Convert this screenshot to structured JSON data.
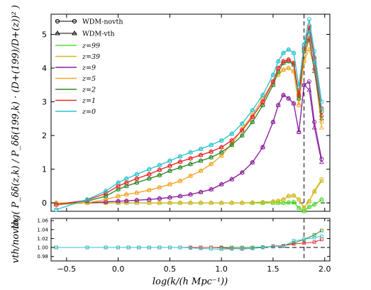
{
  "chart_data": [
    {
      "type": "line",
      "panel": "main",
      "xlabel": "log(k/(h Mpc⁻¹))",
      "ylabel": "log( P_δδ(z,k) / P_δδ(199,k) · (D+(199)/D+(z))² )",
      "xlim": [
        -0.65,
        2.05
      ],
      "ylim": [
        -0.25,
        5.6
      ],
      "xticks": [
        "−0.5",
        "0.0",
        "0.5",
        "1.0",
        "1.5",
        "2.0"
      ],
      "yticks": [
        "0",
        "1",
        "2",
        "3",
        "4",
        "5"
      ],
      "vline_x": 1.8,
      "hline_y": 0,
      "legend": {
        "placement": "top-left",
        "markers": [
          {
            "label": "WDM-novth",
            "marker": "circle"
          },
          {
            "label": "WDM-vth",
            "marker": "triangle"
          }
        ],
        "series_labels": [
          "z=99",
          "z=39",
          "z=9",
          "z=5",
          "z=2",
          "z=1",
          "z=0"
        ]
      },
      "x": [
        -0.6,
        -0.3,
        -0.12,
        0.0,
        0.08,
        0.18,
        0.3,
        0.4,
        0.5,
        0.6,
        0.7,
        0.8,
        0.9,
        1.0,
        1.1,
        1.2,
        1.3,
        1.4,
        1.5,
        1.55,
        1.6,
        1.65,
        1.7,
        1.75,
        1.8,
        1.85,
        1.9,
        1.97
      ],
      "series": [
        {
          "name": "z=99",
          "color": "#4cdf2e",
          "values": [
            0.0,
            0.0,
            0.0,
            0.0,
            0.0,
            0.0,
            0.0,
            0.0,
            0.0,
            0.0,
            0.0,
            0.0,
            0.0,
            0.0,
            0.0,
            0.0,
            0.0,
            0.0,
            0.0,
            0.0,
            0.0,
            0.01,
            0.02,
            -0.15,
            -0.25,
            -0.12,
            -0.05,
            0.1
          ]
        },
        {
          "name": "z=39",
          "color": "#d4b71f",
          "values": [
            0.0,
            0.0,
            0.0,
            0.0,
            0.0,
            0.0,
            0.0,
            0.0,
            0.0,
            0.0,
            0.0,
            0.0,
            0.0,
            0.0,
            0.0,
            0.0,
            0.01,
            0.02,
            0.04,
            0.06,
            0.1,
            0.2,
            0.22,
            0.1,
            -0.15,
            0.05,
            0.35,
            0.7
          ]
        },
        {
          "name": "z=9",
          "color": "#8b1e9e",
          "values": [
            -0.05,
            0.0,
            0.03,
            0.05,
            0.06,
            0.08,
            0.1,
            0.13,
            0.16,
            0.2,
            0.25,
            0.32,
            0.4,
            0.55,
            0.7,
            0.9,
            1.2,
            1.65,
            2.4,
            2.9,
            3.2,
            3.1,
            2.95,
            2.1,
            3.5,
            3.6,
            2.4,
            1.3
          ]
        },
        {
          "name": "z=5",
          "color": "#f5a623",
          "values": [
            -0.05,
            0.0,
            0.1,
            0.2,
            0.25,
            0.3,
            0.38,
            0.46,
            0.55,
            0.65,
            0.8,
            0.95,
            1.15,
            1.4,
            1.75,
            2.2,
            2.6,
            3.1,
            3.6,
            3.8,
            3.95,
            4.0,
            3.9,
            2.9,
            4.2,
            4.9,
            4.3,
            2.4
          ]
        },
        {
          "name": "z=2",
          "color": "#2f8a2a",
          "values": [
            -0.05,
            0.05,
            0.2,
            0.4,
            0.5,
            0.6,
            0.72,
            0.82,
            0.95,
            1.05,
            1.15,
            1.25,
            1.35,
            1.5,
            1.72,
            2.0,
            2.4,
            2.9,
            3.5,
            3.9,
            4.15,
            4.2,
            4.1,
            3.1,
            4.5,
            5.2,
            4.2,
            2.7
          ]
        },
        {
          "name": "z=1",
          "color": "#e8282b",
          "values": [
            -0.05,
            0.08,
            0.28,
            0.5,
            0.6,
            0.72,
            0.85,
            0.98,
            1.1,
            1.22,
            1.32,
            1.42,
            1.52,
            1.65,
            1.85,
            2.15,
            2.55,
            3.0,
            3.6,
            4.0,
            4.2,
            4.25,
            4.15,
            3.2,
            4.6,
            5.25,
            4.3,
            2.8
          ]
        },
        {
          "name": "z=0",
          "color": "#2ec4cc",
          "values": [
            -0.2,
            0.1,
            0.35,
            0.6,
            0.72,
            0.85,
            1.0,
            1.12,
            1.25,
            1.38,
            1.5,
            1.6,
            1.72,
            1.85,
            2.05,
            2.35,
            2.75,
            3.2,
            3.8,
            4.2,
            4.45,
            4.55,
            4.45,
            3.45,
            4.7,
            5.45,
            4.5,
            3.0
          ]
        }
      ]
    },
    {
      "type": "line",
      "panel": "ratio",
      "xlabel": "log(k/(h Mpc⁻¹))",
      "ylabel": "vth/novth",
      "xlim": [
        -0.65,
        2.05
      ],
      "ylim": [
        0.97,
        1.065
      ],
      "yticks": [
        "0.98",
        "1.00",
        "1.02",
        "1.04",
        "1.06"
      ],
      "hline_y": 1.0,
      "vline_x": 1.8,
      "x": [
        -0.6,
        -0.3,
        -0.12,
        0.0,
        0.1,
        0.2,
        0.3,
        0.4,
        0.5,
        0.6,
        0.7,
        0.8,
        0.9,
        1.0,
        1.1,
        1.2,
        1.3,
        1.4,
        1.5,
        1.6,
        1.7,
        1.8,
        1.9,
        1.97
      ],
      "series": [
        {
          "name": "z=2",
          "color": "#2f8a2a",
          "values": [
            1.0,
            1.0,
            1.0,
            1.0,
            1.0,
            1.0,
            1.0,
            1.0,
            1.0,
            1.0,
            1.0,
            1.0,
            1.0,
            1.0,
            1.0,
            1.0,
            1.0,
            1.001,
            1.002,
            1.004,
            1.01,
            1.018,
            1.028,
            1.038
          ]
        },
        {
          "name": "z=1",
          "color": "#e8282b",
          "values": [
            1.0,
            1.0,
            1.0,
            1.0,
            1.0,
            1.0,
            1.0,
            1.0,
            1.0,
            1.0,
            1.0,
            1.0,
            1.0,
            0.999,
            0.998,
            0.997,
            0.998,
            1.0,
            1.003,
            1.004,
            1.008,
            1.01,
            1.012,
            1.018
          ]
        },
        {
          "name": "z=0",
          "color": "#2ec4cc",
          "values": [
            1.0,
            1.0,
            1.0,
            1.0,
            1.0,
            1.0,
            1.0,
            1.0,
            1.0,
            1.0,
            0.999,
            0.998,
            0.997,
            0.996,
            0.997,
            0.998,
            0.998,
            1.0,
            1.002,
            1.003,
            1.015,
            1.018,
            1.022,
            1.025
          ]
        }
      ]
    }
  ]
}
